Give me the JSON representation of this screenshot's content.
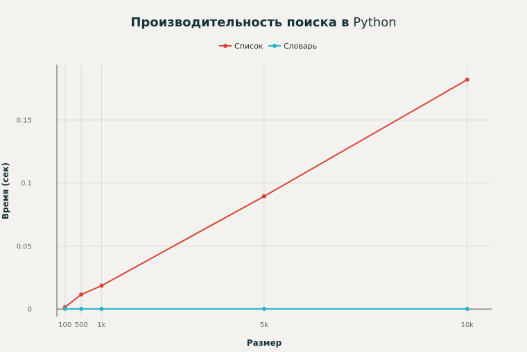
{
  "chart_data": {
    "type": "line",
    "title": {
      "bold": "Производительность поиска в",
      "normal": "Python"
    },
    "xlabel": "Размер",
    "ylabel": "Время (сек)",
    "x": [
      100,
      500,
      1000,
      5000,
      10000
    ],
    "x_ticks": [
      {
        "value": 100,
        "label": "100"
      },
      {
        "value": 500,
        "label": "500"
      },
      {
        "value": 1000,
        "label": "1k"
      },
      {
        "value": 5000,
        "label": "5k"
      },
      {
        "value": 10000,
        "label": "10k"
      }
    ],
    "y_ticks": [
      {
        "value": 0,
        "label": "0"
      },
      {
        "value": 0.05,
        "label": "0.05"
      },
      {
        "value": 0.1,
        "label": "0.1"
      },
      {
        "value": 0.15,
        "label": "0.15"
      }
    ],
    "xlim": [
      -100,
      10600
    ],
    "ylim": [
      -0.006,
      0.194
    ],
    "grid": true,
    "legend_position": "top-center",
    "series": [
      {
        "name": "Список",
        "color": "#d9423a",
        "values": [
          0.0015,
          0.0115,
          0.0185,
          0.0895,
          0.182
        ]
      },
      {
        "name": "Словарь",
        "color": "#22b5c9",
        "values": [
          0.0001,
          0.0001,
          0.0001,
          0.0001,
          0.0001
        ]
      }
    ]
  }
}
